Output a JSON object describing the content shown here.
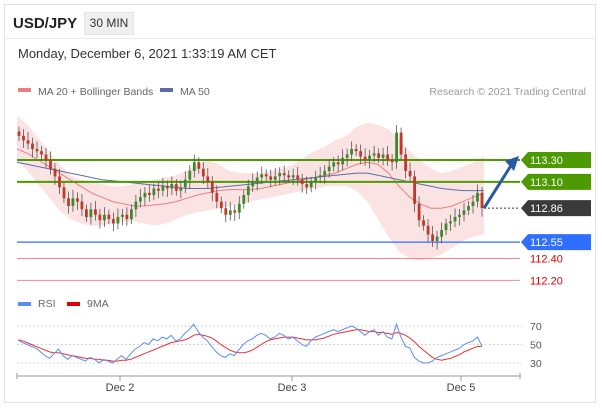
{
  "header": {
    "pair": "USD/JPY",
    "timeframe": "30 MIN",
    "datetime": "Monday, December 6, 2021 1:33:19 AM CET"
  },
  "legend": {
    "ma20": "MA 20 + Bollinger Bands",
    "ma50": "MA 50",
    "rsi": "RSI",
    "nine_ma": "9MA",
    "copyright": "Research © 2021 Trading Central"
  },
  "colors": {
    "green": "#4c9a00",
    "blue": "#2e6fff",
    "red": "#e30000",
    "dark": "#3a3a3a",
    "band": "#fbd9d9",
    "ma20": "#e88080",
    "ma50": "#5a6fa8",
    "bull": "#3b8b2e",
    "bear": "#c0392b",
    "arrow": "#2b5aa5",
    "rsi": "#5b8ef0",
    "rsi_ma": "#e63333"
  },
  "chart_data": [
    {
      "type": "line",
      "series_type": "candlestick",
      "title": "USD/JPY",
      "timeframe": "30 MIN",
      "x_ticks": [
        "Dec 2",
        "Dec 3",
        "Dec 5"
      ],
      "ylim": [
        112.14,
        113.72
      ],
      "levels": [
        {
          "value": 113.3,
          "label": "113.30",
          "kind": "resistance"
        },
        {
          "value": 113.1,
          "label": "113.10",
          "kind": "resistance"
        },
        {
          "value": 112.86,
          "label": "112.86",
          "kind": "last_price"
        },
        {
          "value": 112.55,
          "label": "112.55",
          "kind": "pivot"
        },
        {
          "value": 112.4,
          "label": "112.40",
          "kind": "support"
        },
        {
          "value": 112.2,
          "label": "112.20",
          "kind": "support"
        }
      ],
      "series": [
        {
          "name": "MA 20 + Bollinger Bands"
        },
        {
          "name": "MA 50"
        }
      ],
      "closes": [
        113.52,
        113.48,
        113.45,
        113.4,
        113.38,
        113.35,
        113.3,
        113.22,
        113.15,
        113.05,
        112.95,
        112.88,
        112.95,
        112.92,
        112.85,
        112.78,
        112.85,
        112.8,
        112.75,
        112.8,
        112.76,
        112.72,
        112.78,
        112.8,
        112.76,
        112.85,
        112.92,
        112.96,
        113.0,
        112.98,
        113.04,
        113.02,
        113.06,
        113.04,
        113.08,
        113.02,
        113.05,
        113.12,
        113.2,
        113.28,
        113.22,
        113.15,
        113.1,
        113.0,
        112.92,
        112.86,
        112.8,
        112.84,
        112.82,
        112.9,
        112.98,
        113.06,
        113.1,
        113.14,
        113.17,
        113.15,
        113.12,
        113.15,
        113.18,
        113.16,
        113.14,
        113.16,
        113.12,
        113.08,
        113.05,
        113.1,
        113.14,
        113.16,
        113.2,
        113.24,
        113.28,
        113.26,
        113.32,
        113.35,
        113.4,
        113.38,
        113.33,
        113.3,
        113.34,
        113.36,
        113.32,
        113.35,
        113.3,
        113.28,
        113.55,
        113.35,
        113.2,
        113.15,
        112.9,
        112.75,
        112.7,
        112.62,
        112.56,
        112.6,
        112.66,
        112.72,
        112.74,
        112.78,
        112.8,
        112.84,
        112.88,
        112.92,
        113.0,
        112.86
      ],
      "opens": [
        113.56,
        113.52,
        113.48,
        113.45,
        113.4,
        113.38,
        113.35,
        113.3,
        113.22,
        113.15,
        113.05,
        112.95,
        112.88,
        112.95,
        112.92,
        112.85,
        112.78,
        112.85,
        112.8,
        112.75,
        112.8,
        112.76,
        112.72,
        112.78,
        112.8,
        112.76,
        112.85,
        112.92,
        112.96,
        113.0,
        112.98,
        113.04,
        113.02,
        113.06,
        113.04,
        113.08,
        113.02,
        113.05,
        113.12,
        113.2,
        113.28,
        113.22,
        113.15,
        113.1,
        113.0,
        112.92,
        112.86,
        112.8,
        112.84,
        112.82,
        112.9,
        112.98,
        113.06,
        113.1,
        113.14,
        113.17,
        113.15,
        113.12,
        113.15,
        113.18,
        113.16,
        113.14,
        113.16,
        113.12,
        113.08,
        113.05,
        113.1,
        113.14,
        113.16,
        113.2,
        113.24,
        113.28,
        113.26,
        113.32,
        113.35,
        113.4,
        113.38,
        113.33,
        113.3,
        113.34,
        113.36,
        113.32,
        113.35,
        113.3,
        113.28,
        113.55,
        113.35,
        113.2,
        113.15,
        112.9,
        112.75,
        112.7,
        112.62,
        112.56,
        112.6,
        112.66,
        112.72,
        112.74,
        112.78,
        112.8,
        112.84,
        112.88,
        112.92,
        113.0
      ],
      "ma20": [
        113.4,
        113.36,
        113.3,
        113.24,
        113.18,
        113.12,
        113.06,
        113.0,
        112.96,
        112.92,
        112.9,
        112.88,
        112.88,
        112.89,
        112.9,
        112.92,
        112.95,
        112.98,
        113.0,
        113.02,
        113.03,
        113.03,
        113.03,
        113.04,
        113.06,
        113.08,
        113.1,
        113.12,
        113.14,
        113.16,
        113.18,
        113.22,
        113.26,
        113.28,
        113.26,
        113.18,
        113.06,
        112.96,
        112.9,
        112.86,
        112.86,
        112.88,
        112.92,
        112.96,
        113.0
      ],
      "bb_upper": [
        113.7,
        113.62,
        113.5,
        113.38,
        113.26,
        113.16,
        113.12,
        113.1,
        113.08,
        113.06,
        113.06,
        113.08,
        113.1,
        113.12,
        113.14,
        113.16,
        113.2,
        113.26,
        113.3,
        113.26,
        113.2,
        113.18,
        113.18,
        113.18,
        113.2,
        113.22,
        113.26,
        113.32,
        113.38,
        113.42,
        113.48,
        113.52,
        113.6,
        113.64,
        113.62,
        113.58,
        113.5,
        113.38,
        113.3,
        113.22,
        113.18,
        113.2,
        113.24,
        113.28,
        113.34
      ],
      "bb_lower": [
        113.3,
        113.2,
        113.08,
        112.96,
        112.84,
        112.76,
        112.72,
        112.7,
        112.7,
        112.72,
        112.74,
        112.74,
        112.72,
        112.7,
        112.72,
        112.76,
        112.8,
        112.82,
        112.84,
        112.86,
        112.88,
        112.9,
        112.92,
        112.94,
        112.96,
        112.98,
        113.0,
        113.02,
        113.04,
        113.06,
        113.06,
        113.06,
        113.02,
        112.92,
        112.76,
        112.6,
        112.46,
        112.4,
        112.38,
        112.4,
        112.44,
        112.5,
        112.56,
        112.6,
        112.62
      ],
      "ma50": [
        113.28,
        113.26,
        113.24,
        113.22,
        113.2,
        113.18,
        113.16,
        113.14,
        113.12,
        113.11,
        113.1,
        113.09,
        113.08,
        113.07,
        113.06,
        113.05,
        113.04,
        113.04,
        113.04,
        113.05,
        113.06,
        113.07,
        113.08,
        113.09,
        113.1,
        113.11,
        113.12,
        113.13,
        113.14,
        113.15,
        113.16,
        113.17,
        113.18,
        113.18,
        113.16,
        113.14,
        113.12,
        113.1,
        113.08,
        113.06,
        113.04,
        113.03,
        113.02,
        113.02,
        113.02
      ]
    },
    {
      "type": "line",
      "title": "RSI",
      "y_ticks": [
        70,
        50,
        30
      ],
      "ylim": [
        20,
        78
      ],
      "series": [
        {
          "name": "RSI",
          "values": [
            55,
            52,
            50,
            48,
            46,
            42,
            38,
            35,
            40,
            45,
            38,
            34,
            38,
            36,
            34,
            32,
            36,
            34,
            30,
            34,
            32,
            30,
            34,
            38,
            34,
            40,
            45,
            48,
            52,
            50,
            56,
            54,
            58,
            56,
            60,
            54,
            56,
            62,
            66,
            72,
            64,
            58,
            54,
            48,
            42,
            38,
            36,
            40,
            38,
            44,
            50,
            54,
            56,
            60,
            62,
            60,
            56,
            58,
            62,
            60,
            56,
            58,
            54,
            50,
            48,
            54,
            58,
            60,
            62,
            64,
            66,
            64,
            66,
            68,
            70,
            68,
            64,
            60,
            64,
            66,
            60,
            64,
            58,
            56,
            72,
            58,
            48,
            46,
            36,
            32,
            30,
            30,
            32,
            36,
            38,
            40,
            42,
            44,
            46,
            50,
            52,
            54,
            58,
            48
          ]
        },
        {
          "name": "9MA",
          "values": [
            55,
            54,
            52,
            50,
            48,
            46,
            44,
            42,
            41,
            41,
            40,
            39,
            38,
            37,
            36,
            35,
            35,
            34,
            34,
            33,
            33,
            32,
            32,
            33,
            33,
            34,
            36,
            38,
            40,
            42,
            44,
            46,
            48,
            50,
            52,
            53,
            54,
            55,
            57,
            60,
            61,
            60,
            59,
            57,
            54,
            50,
            47,
            44,
            42,
            41,
            41,
            42,
            44,
            47,
            50,
            53,
            55,
            56,
            57,
            58,
            58,
            58,
            57,
            56,
            55,
            55,
            55,
            56,
            57,
            59,
            61,
            62,
            63,
            64,
            65,
            66,
            66,
            65,
            64,
            64,
            63,
            63,
            62,
            61,
            63,
            62,
            60,
            57,
            53,
            48,
            44,
            40,
            36,
            34,
            33,
            34,
            35,
            37,
            39,
            42,
            44,
            46,
            48,
            48
          ]
        }
      ]
    }
  ]
}
